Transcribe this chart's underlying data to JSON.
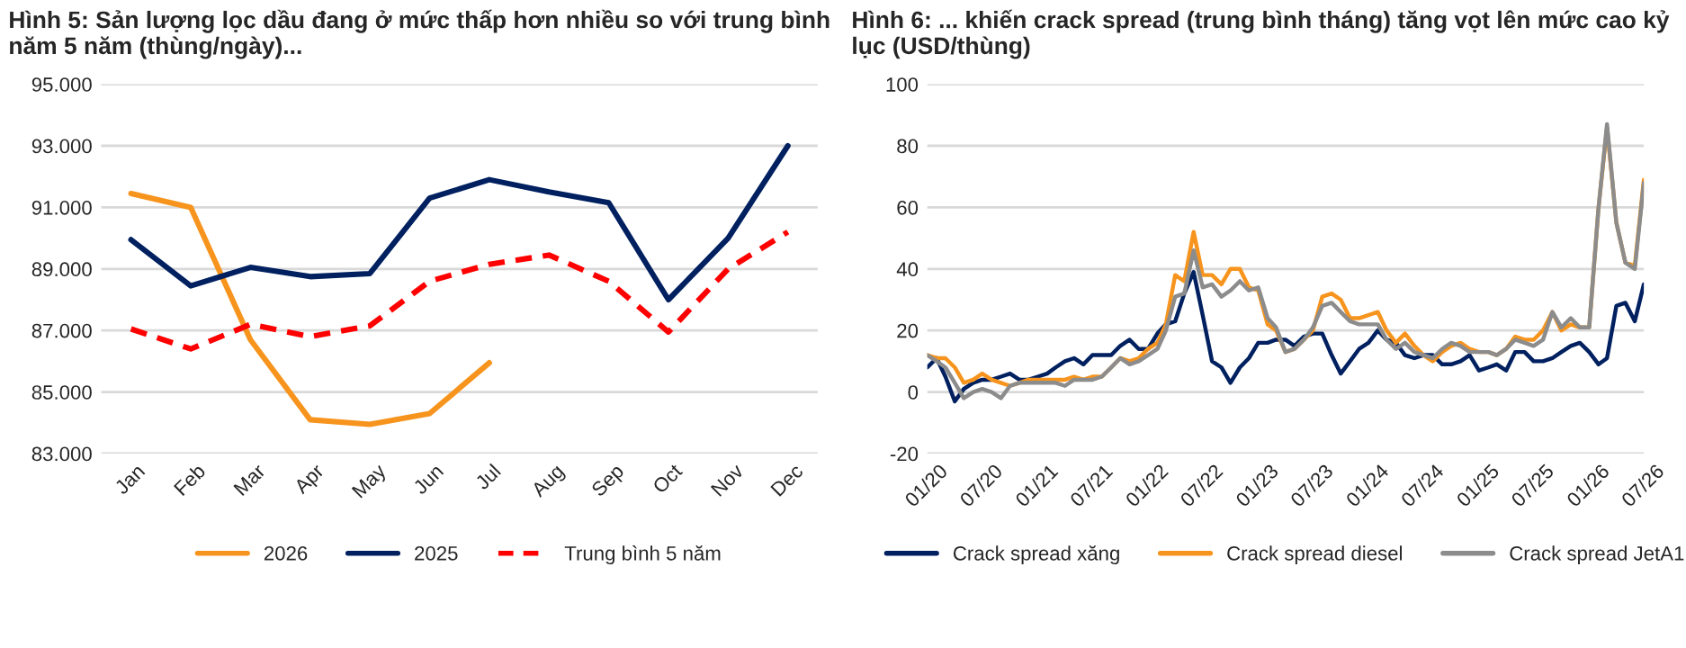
{
  "chart_data": [
    {
      "type": "line",
      "title": "Hình 5: Sản lượng lọc dầu đang ở mức thấp hơn nhiều so với trung bình năm 5 năm (thùng/ngày)...",
      "categories": [
        "Jan",
        "Feb",
        "Mar",
        "Apr",
        "May",
        "Jun",
        "Jul",
        "Aug",
        "Sep",
        "Oct",
        "Nov",
        "Dec"
      ],
      "series": [
        {
          "name": "2026",
          "color": "#f7941d",
          "line_style": "solid",
          "values": [
            91450,
            91000,
            86700,
            84100,
            83950,
            84300,
            85950,
            null,
            null,
            null,
            null,
            null
          ]
        },
        {
          "name": "2025",
          "color": "#002060",
          "line_style": "solid",
          "values": [
            89950,
            88450,
            89050,
            88750,
            88850,
            91300,
            91900,
            91500,
            91150,
            88000,
            90000,
            93000
          ]
        },
        {
          "name": "Trung bình 5 năm",
          "color": "#ff0000",
          "line_style": "dashed",
          "values": [
            87050,
            86400,
            87200,
            86800,
            87150,
            88600,
            89150,
            89450,
            88600,
            86950,
            89000,
            90200
          ]
        }
      ],
      "ylim": [
        83000,
        95000
      ],
      "yticks": [
        {
          "value": 83000,
          "label": "83.000"
        },
        {
          "value": 85000,
          "label": "85.000"
        },
        {
          "value": 87000,
          "label": "87.000"
        },
        {
          "value": 89000,
          "label": "89.000"
        },
        {
          "value": 91000,
          "label": "91.000"
        },
        {
          "value": 93000,
          "label": "93.000"
        },
        {
          "value": 95000,
          "label": "95.000"
        }
      ],
      "grid": "y",
      "legend": "bottom",
      "marker": "none"
    },
    {
      "type": "line",
      "title": "Hình 6: ... khiến crack spread (trung bình tháng) tăng vọt lên mức cao kỷ lục (USD/thùng)",
      "x": [
        "2020-01",
        "2020-02",
        "2020-03",
        "2020-04",
        "2020-05",
        "2020-06",
        "2020-07",
        "2020-08",
        "2020-09",
        "2020-10",
        "2020-11",
        "2020-12",
        "2021-01",
        "2021-02",
        "2021-03",
        "2021-04",
        "2021-05",
        "2021-06",
        "2021-07",
        "2021-08",
        "2021-09",
        "2021-10",
        "2021-11",
        "2021-12",
        "2022-01",
        "2022-02",
        "2022-03",
        "2022-04",
        "2022-05",
        "2022-06",
        "2022-07",
        "2022-08",
        "2022-09",
        "2022-10",
        "2022-11",
        "2022-12",
        "2023-01",
        "2023-02",
        "2023-03",
        "2023-04",
        "2023-05",
        "2023-06",
        "2023-07",
        "2023-08",
        "2023-09",
        "2023-10",
        "2023-11",
        "2023-12",
        "2024-01",
        "2024-02",
        "2024-03",
        "2024-04",
        "2024-05",
        "2024-06",
        "2024-07",
        "2024-08",
        "2024-09",
        "2024-10",
        "2024-11",
        "2024-12",
        "2025-01",
        "2025-02",
        "2025-03",
        "2025-04",
        "2025-05",
        "2025-06",
        "2025-07",
        "2025-08",
        "2025-09",
        "2025-10",
        "2025-11",
        "2025-12",
        "2026-01",
        "2026-02",
        "2026-03",
        "2026-04",
        "2026-05",
        "2026-06",
        "2026-07"
      ],
      "series": [
        {
          "name": "Crack spread xăng",
          "color": "#002060",
          "values": [
            8,
            11,
            5,
            -3,
            1,
            3,
            4,
            4,
            5,
            6,
            4,
            4,
            5,
            6,
            8,
            10,
            11,
            9,
            12,
            12,
            12,
            15,
            17,
            14,
            14,
            19,
            22,
            23,
            32,
            39,
            25,
            10,
            8,
            3,
            8,
            11,
            16,
            16,
            17,
            17,
            15,
            18,
            19,
            19,
            12,
            6,
            10,
            14,
            16,
            20,
            17,
            16,
            12,
            11,
            12,
            12,
            9,
            9,
            10,
            12,
            7,
            8,
            9,
            7,
            13,
            13,
            10,
            10,
            11,
            13,
            15,
            16,
            13,
            9,
            11,
            28,
            29,
            23,
            35
          ]
        },
        {
          "name": "Crack spread diesel",
          "color": "#f7941d",
          "values": [
            12,
            11,
            11,
            8,
            3,
            4,
            6,
            4,
            3,
            2,
            3,
            4,
            4,
            4,
            4,
            4,
            5,
            4,
            5,
            5,
            8,
            11,
            10,
            11,
            14,
            16,
            22,
            38,
            36,
            52,
            38,
            38,
            35,
            40,
            40,
            34,
            33,
            22,
            20,
            13,
            14,
            17,
            20,
            31,
            32,
            30,
            24,
            24,
            25,
            26,
            20,
            16,
            19,
            15,
            12,
            10,
            13,
            15,
            16,
            14,
            13,
            13,
            12,
            14,
            18,
            17,
            17,
            20,
            26,
            20,
            22,
            21,
            21,
            60,
            86,
            55,
            42,
            41,
            69
          ]
        },
        {
          "name": "Crack spread JetA1",
          "color": "#8c8c8c",
          "values": [
            12,
            10,
            8,
            3,
            -2,
            0,
            1,
            0,
            -2,
            2,
            3,
            3,
            3,
            3,
            3,
            2,
            4,
            4,
            4,
            5,
            8,
            11,
            9,
            10,
            12,
            14,
            20,
            31,
            32,
            46,
            34,
            35,
            31,
            33,
            36,
            33,
            34,
            24,
            21,
            13,
            14,
            17,
            21,
            28,
            29,
            26,
            23,
            22,
            22,
            22,
            17,
            14,
            16,
            13,
            12,
            11,
            14,
            16,
            15,
            13,
            13,
            13,
            12,
            14,
            17,
            16,
            15,
            17,
            26,
            21,
            24,
            21,
            21,
            60,
            87,
            55,
            42,
            40,
            68
          ]
        }
      ],
      "xlim": [
        "2020-01",
        "2026-07"
      ],
      "xticks": [
        {
          "value": "2020-01",
          "label": "01/20"
        },
        {
          "value": "2020-07",
          "label": "07/20"
        },
        {
          "value": "2021-01",
          "label": "01/21"
        },
        {
          "value": "2021-07",
          "label": "07/21"
        },
        {
          "value": "2022-01",
          "label": "01/22"
        },
        {
          "value": "2022-07",
          "label": "07/22"
        },
        {
          "value": "2023-01",
          "label": "01/23"
        },
        {
          "value": "2023-07",
          "label": "07/23"
        },
        {
          "value": "2024-01",
          "label": "01/24"
        },
        {
          "value": "2024-07",
          "label": "07/24"
        },
        {
          "value": "2025-01",
          "label": "01/25"
        },
        {
          "value": "2025-07",
          "label": "07/25"
        },
        {
          "value": "2026-01",
          "label": "01/26"
        },
        {
          "value": "2026-07",
          "label": "07/26"
        }
      ],
      "ylim": [
        -20,
        100
      ],
      "yticks": [
        -20,
        0,
        20,
        40,
        60,
        80,
        100
      ],
      "grid": "y",
      "legend": "bottom",
      "marker": "none"
    }
  ]
}
